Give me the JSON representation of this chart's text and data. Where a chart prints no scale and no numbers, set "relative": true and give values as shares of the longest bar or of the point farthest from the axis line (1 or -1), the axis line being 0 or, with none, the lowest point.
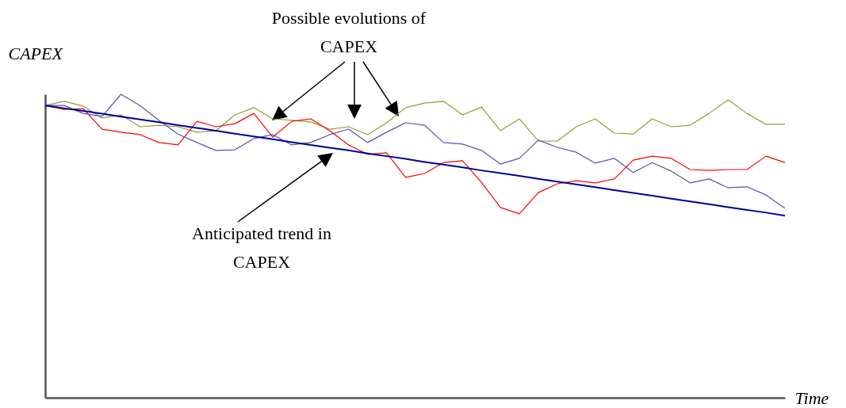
{
  "chart_data": {
    "type": "line",
    "relative": true,
    "xlabel": "Time",
    "ylabel": "CAPEX",
    "line_style": "solid",
    "marker": "none",
    "annotations": [
      "Possible evolutions of CAPEX",
      "Anticipated trend in CAPEX"
    ],
    "categories": [
      null,
      null,
      null,
      null,
      null,
      null,
      null,
      null,
      null,
      null,
      null,
      null,
      null,
      null,
      null,
      null,
      null,
      null,
      null,
      null,
      null,
      null,
      null,
      null,
      null,
      null,
      null,
      null,
      null,
      null,
      null,
      null,
      null,
      null,
      null,
      null,
      null,
      null,
      null,
      null
    ],
    "series": [
      {
        "color": "#999933",
        "values": [
          0.963,
          0.977,
          0.961,
          0.922,
          0.932,
          0.893,
          0.898,
          0.893,
          0.875,
          0.88,
          0.932,
          0.956,
          0.919,
          0.914,
          0.909,
          0.885,
          0.893,
          0.867,
          0.906,
          0.956,
          0.971,
          0.977,
          0.932,
          0.958,
          0.88,
          0.919,
          0.846,
          0.846,
          0.893,
          0.919,
          0.872,
          0.869,
          0.919,
          0.893,
          0.898,
          0.937,
          0.982,
          0.937,
          0.901,
          0.901
        ]
      },
      {
        "color": "#ff0000",
        "values": [
          0.963,
          0.95,
          0.953,
          0.885,
          0.875,
          0.867,
          0.841,
          0.833,
          0.911,
          0.893,
          0.903,
          0.937,
          0.859,
          0.911,
          0.919,
          0.88,
          0.833,
          0.802,
          0.807,
          0.726,
          0.739,
          0.775,
          0.781,
          0.71,
          0.627,
          0.606,
          0.676,
          0.705,
          0.715,
          0.708,
          0.721,
          0.783,
          0.796,
          0.789,
          0.752,
          0.749,
          0.752,
          0.752,
          0.796,
          0.775
        ]
      },
      {
        "color": "#5555aa",
        "values": [
          0.963,
          0.963,
          0.937,
          0.927,
          1,
          0.963,
          0.914,
          0.869,
          0.841,
          0.815,
          0.817,
          0.854,
          0.867,
          0.833,
          0.841,
          0.867,
          0.885,
          0.841,
          0.875,
          0.906,
          0.898,
          0.841,
          0.836,
          0.815,
          0.77,
          0.789,
          0.849,
          0.825,
          0.809,
          0.773,
          0.789,
          0.742,
          0.775,
          0.747,
          0.708,
          0.721,
          0.692,
          0.695,
          0.668,
          0.624
        ]
      },
      {
        "color": "#000099",
        "values": [
          0.963,
          0.954,
          0.945,
          0.936,
          0.926,
          0.917,
          0.908,
          0.898,
          0.889,
          0.88,
          0.87,
          0.861,
          0.852,
          0.842,
          0.833,
          0.824,
          0.815,
          0.805,
          0.796,
          0.787,
          0.777,
          0.768,
          0.759,
          0.749,
          0.74,
          0.731,
          0.721,
          0.712,
          0.703,
          0.694,
          0.684,
          0.675,
          0.666,
          0.656,
          0.647,
          0.638,
          0.628,
          0.619,
          0.61,
          0.6
        ]
      }
    ]
  }
}
